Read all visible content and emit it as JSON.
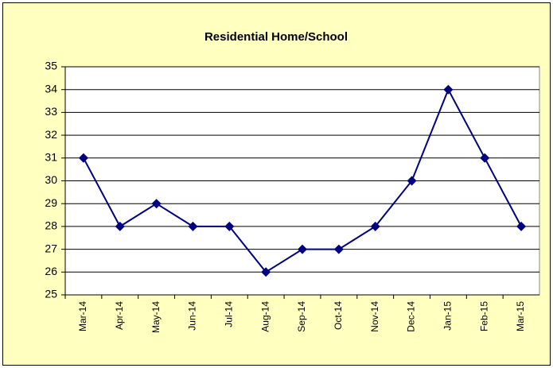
{
  "chart_data": {
    "type": "line",
    "title": "Residential Home/School",
    "categories": [
      "Mar-14",
      "Apr-14",
      "May-14",
      "Jun-14",
      "Jul-14",
      "Aug-14",
      "Sep-14",
      "Oct-14",
      "Nov-14",
      "Dec-14",
      "Jan-15",
      "Feb-15",
      "Mar-15"
    ],
    "values": [
      31,
      28,
      29,
      28,
      28,
      26,
      27,
      27,
      28,
      30,
      34,
      31,
      28
    ],
    "color": "#000080",
    "ylim": [
      25,
      35
    ],
    "yticks": [
      25,
      26,
      27,
      28,
      29,
      30,
      31,
      32,
      33,
      34,
      35
    ],
    "grid": true
  }
}
